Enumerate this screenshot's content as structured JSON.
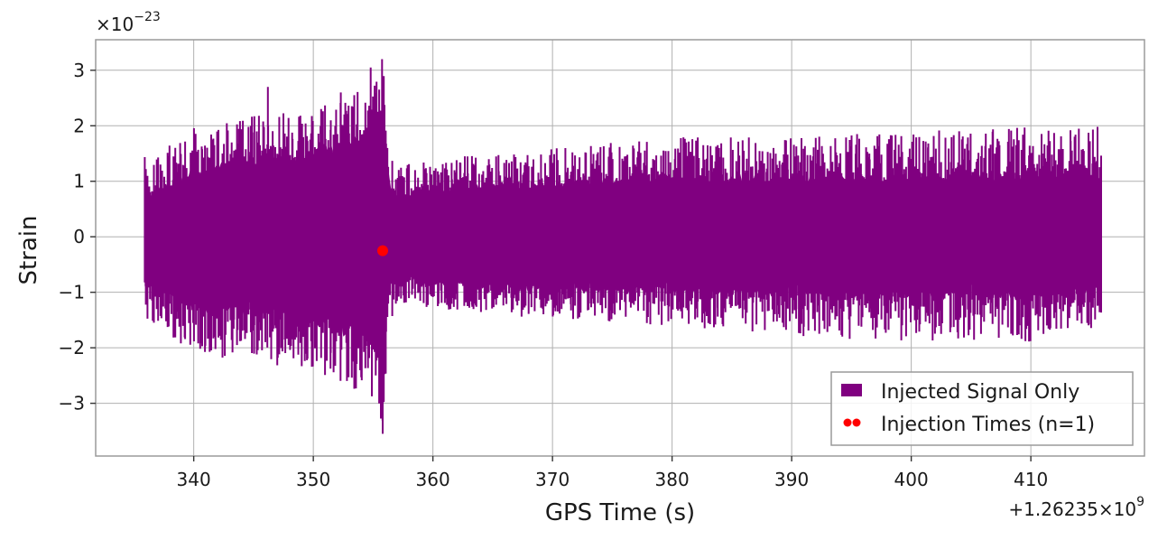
{
  "chart_data": {
    "type": "line",
    "x_offset_label": "+1.26235×10",
    "x_offset_exponent": "9",
    "y_scale_label": "×10",
    "y_scale_exponent": "−23",
    "xlabel": "GPS Time (s)",
    "ylabel": "Strain",
    "xlim": [
      331.8,
      419.5
    ],
    "ylim": [
      -3.95,
      3.55
    ],
    "x_ticks": [
      340,
      350,
      360,
      370,
      380,
      390,
      400,
      410
    ],
    "x_tick_labels": [
      "340",
      "350",
      "360",
      "370",
      "380",
      "390",
      "400",
      "410"
    ],
    "y_ticks": [
      -3,
      -2,
      -1,
      0,
      1,
      2,
      3
    ],
    "y_tick_labels": [
      "−3",
      "−2",
      "−1",
      "0",
      "1",
      "2",
      "3"
    ],
    "grid": true,
    "legend_position": "bottom-right",
    "series": [
      {
        "name": "Injected Signal Only",
        "kind": "line",
        "color": "#800080",
        "x_range": [
          335.9,
          415.9
        ],
        "envelope": {
          "x": [
            335.9,
            340,
            345,
            350,
            353,
            355,
            355.8,
            356.4,
            357.5,
            360,
            370,
            380,
            390,
            400,
            410,
            415.9
          ],
          "upper": [
            1.5,
            2.0,
            2.2,
            2.3,
            2.5,
            2.9,
            3.2,
            1.5,
            1.3,
            1.4,
            1.6,
            1.8,
            1.8,
            1.9,
            2.0,
            2.0
          ],
          "lower": [
            -1.5,
            -2.1,
            -2.3,
            -2.4,
            -2.7,
            -3.0,
            -3.55,
            -1.5,
            -1.2,
            -1.3,
            -1.5,
            -1.6,
            -1.8,
            -1.9,
            -1.9,
            -1.6
          ],
          "core_upper": [
            0.7,
            1.1,
            1.3,
            1.4,
            1.6,
            1.9,
            2.2,
            0.8,
            0.7,
            0.8,
            0.9,
            1.0,
            1.0,
            1.0,
            1.1,
            1.0
          ],
          "core_lower": [
            -0.8,
            -1.2,
            -1.3,
            -1.4,
            -1.6,
            -1.9,
            -2.2,
            -0.8,
            -0.7,
            -0.8,
            -0.9,
            -0.9,
            -1.0,
            -1.0,
            -1.0,
            -0.9
          ]
        }
      },
      {
        "name": "Injection Times (n=1)",
        "kind": "scatter",
        "color": "#ff0000",
        "points": [
          {
            "x": 355.8,
            "y": -0.25
          }
        ]
      }
    ]
  }
}
